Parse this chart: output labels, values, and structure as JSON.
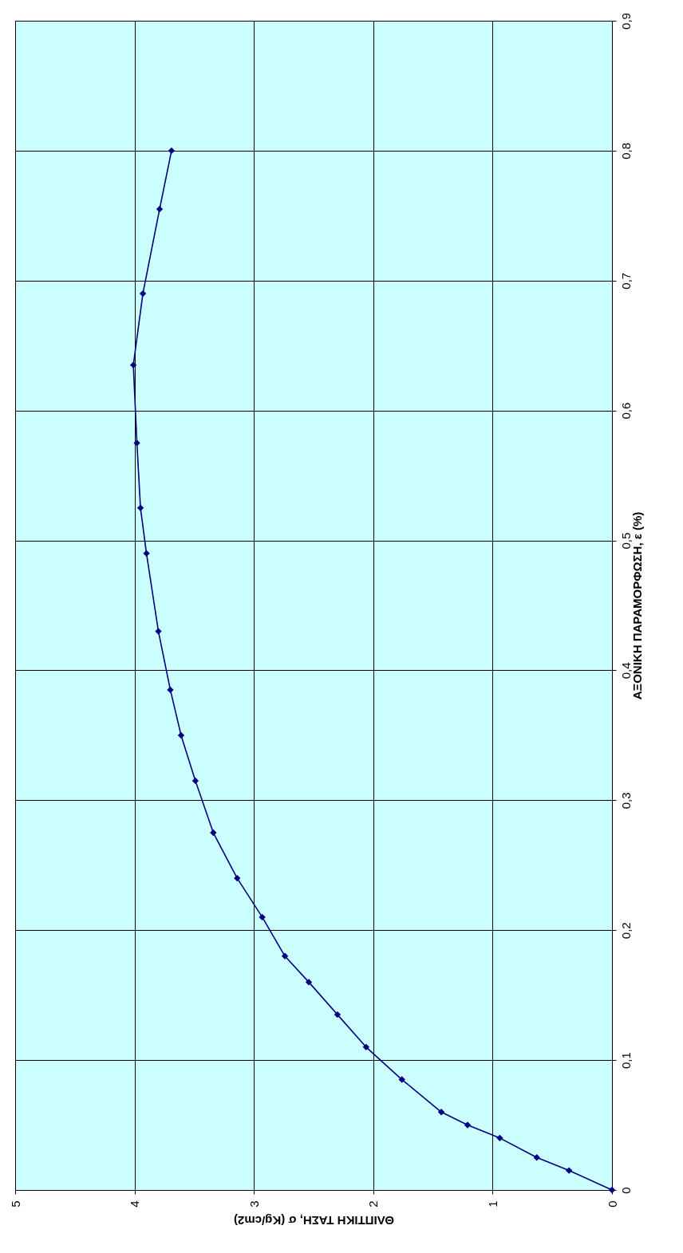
{
  "chart_data": {
    "type": "line",
    "xlabel": "ΘΛΙΠΤΙΚΗ ΤΑΣΗ, σ (Kg/cm2)",
    "ylabel": "ΑΞΟΝΙΚΗ ΠΑΡΑΜΟΡΦΩΣΗ, ε (%)",
    "x": [
      0,
      0.36,
      0.63,
      0.94,
      1.21,
      1.43,
      1.76,
      2.06,
      2.3,
      2.54,
      2.74,
      2.93,
      3.14,
      3.34,
      3.49,
      3.61,
      3.7,
      3.8,
      3.9,
      3.95,
      3.98,
      4.01,
      3.93,
      3.79,
      3.69
    ],
    "series": [
      {
        "color": "#000080",
        "values": [
          0,
          0.015,
          0.025,
          0.04,
          0.05,
          0.06,
          0.085,
          0.11,
          0.135,
          0.16,
          0.18,
          0.21,
          0.24,
          0.275,
          0.315,
          0.35,
          0.385,
          0.43,
          0.49,
          0.525,
          0.575,
          0.635,
          0.69,
          0.755,
          0.8
        ]
      }
    ],
    "xlim": [
      5,
      0
    ],
    "xticks": [
      0,
      1,
      2,
      3,
      4,
      5
    ],
    "ylim": [
      0,
      0.9
    ],
    "yticks": [
      {
        "value": 0,
        "label": "0"
      },
      {
        "value": 0.1,
        "label": "0,1"
      },
      {
        "value": 0.2,
        "label": "0,2"
      },
      {
        "value": 0.3,
        "label": "0,3"
      },
      {
        "value": 0.4,
        "label": "0,4"
      },
      {
        "value": 0.5,
        "label": "0,5"
      },
      {
        "value": 0.6,
        "label": "0,6"
      },
      {
        "value": 0.7,
        "label": "0,7"
      },
      {
        "value": 0.8,
        "label": "0,8"
      },
      {
        "value": 0.9,
        "label": "0,9"
      }
    ],
    "grid": true,
    "marker": "diamond",
    "line_style": "solid"
  }
}
